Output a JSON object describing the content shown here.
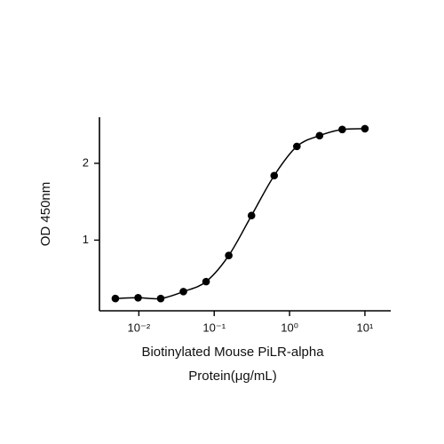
{
  "chart_data": {
    "type": "scatter",
    "log_x": true,
    "ylabel": "OD 450nm",
    "xlabel": [
      "Biotinylated Mouse PiLR-alpha",
      "Protein(μg/mL)"
    ],
    "x": [
      0.00488,
      0.00977,
      0.0195,
      0.039,
      0.078,
      0.156,
      0.3125,
      0.625,
      1.25,
      2.5,
      5,
      10
    ],
    "series": [
      {
        "color": "#000000",
        "values": [
          0.24,
          0.25,
          0.24,
          0.33,
          0.46,
          0.8,
          1.32,
          1.84,
          2.22,
          2.36,
          2.44,
          2.45
        ]
      }
    ],
    "xlim": [
      0.003,
      22
    ],
    "ylim": [
      0.08,
      2.6
    ],
    "xticks": [
      {
        "value": 0.01,
        "label": "10⁻²"
      },
      {
        "value": 0.1,
        "label": "10⁻¹"
      },
      {
        "value": 1,
        "label": "10⁰"
      },
      {
        "value": 10,
        "label": "10¹"
      }
    ],
    "yticks": [
      1,
      2
    ]
  }
}
